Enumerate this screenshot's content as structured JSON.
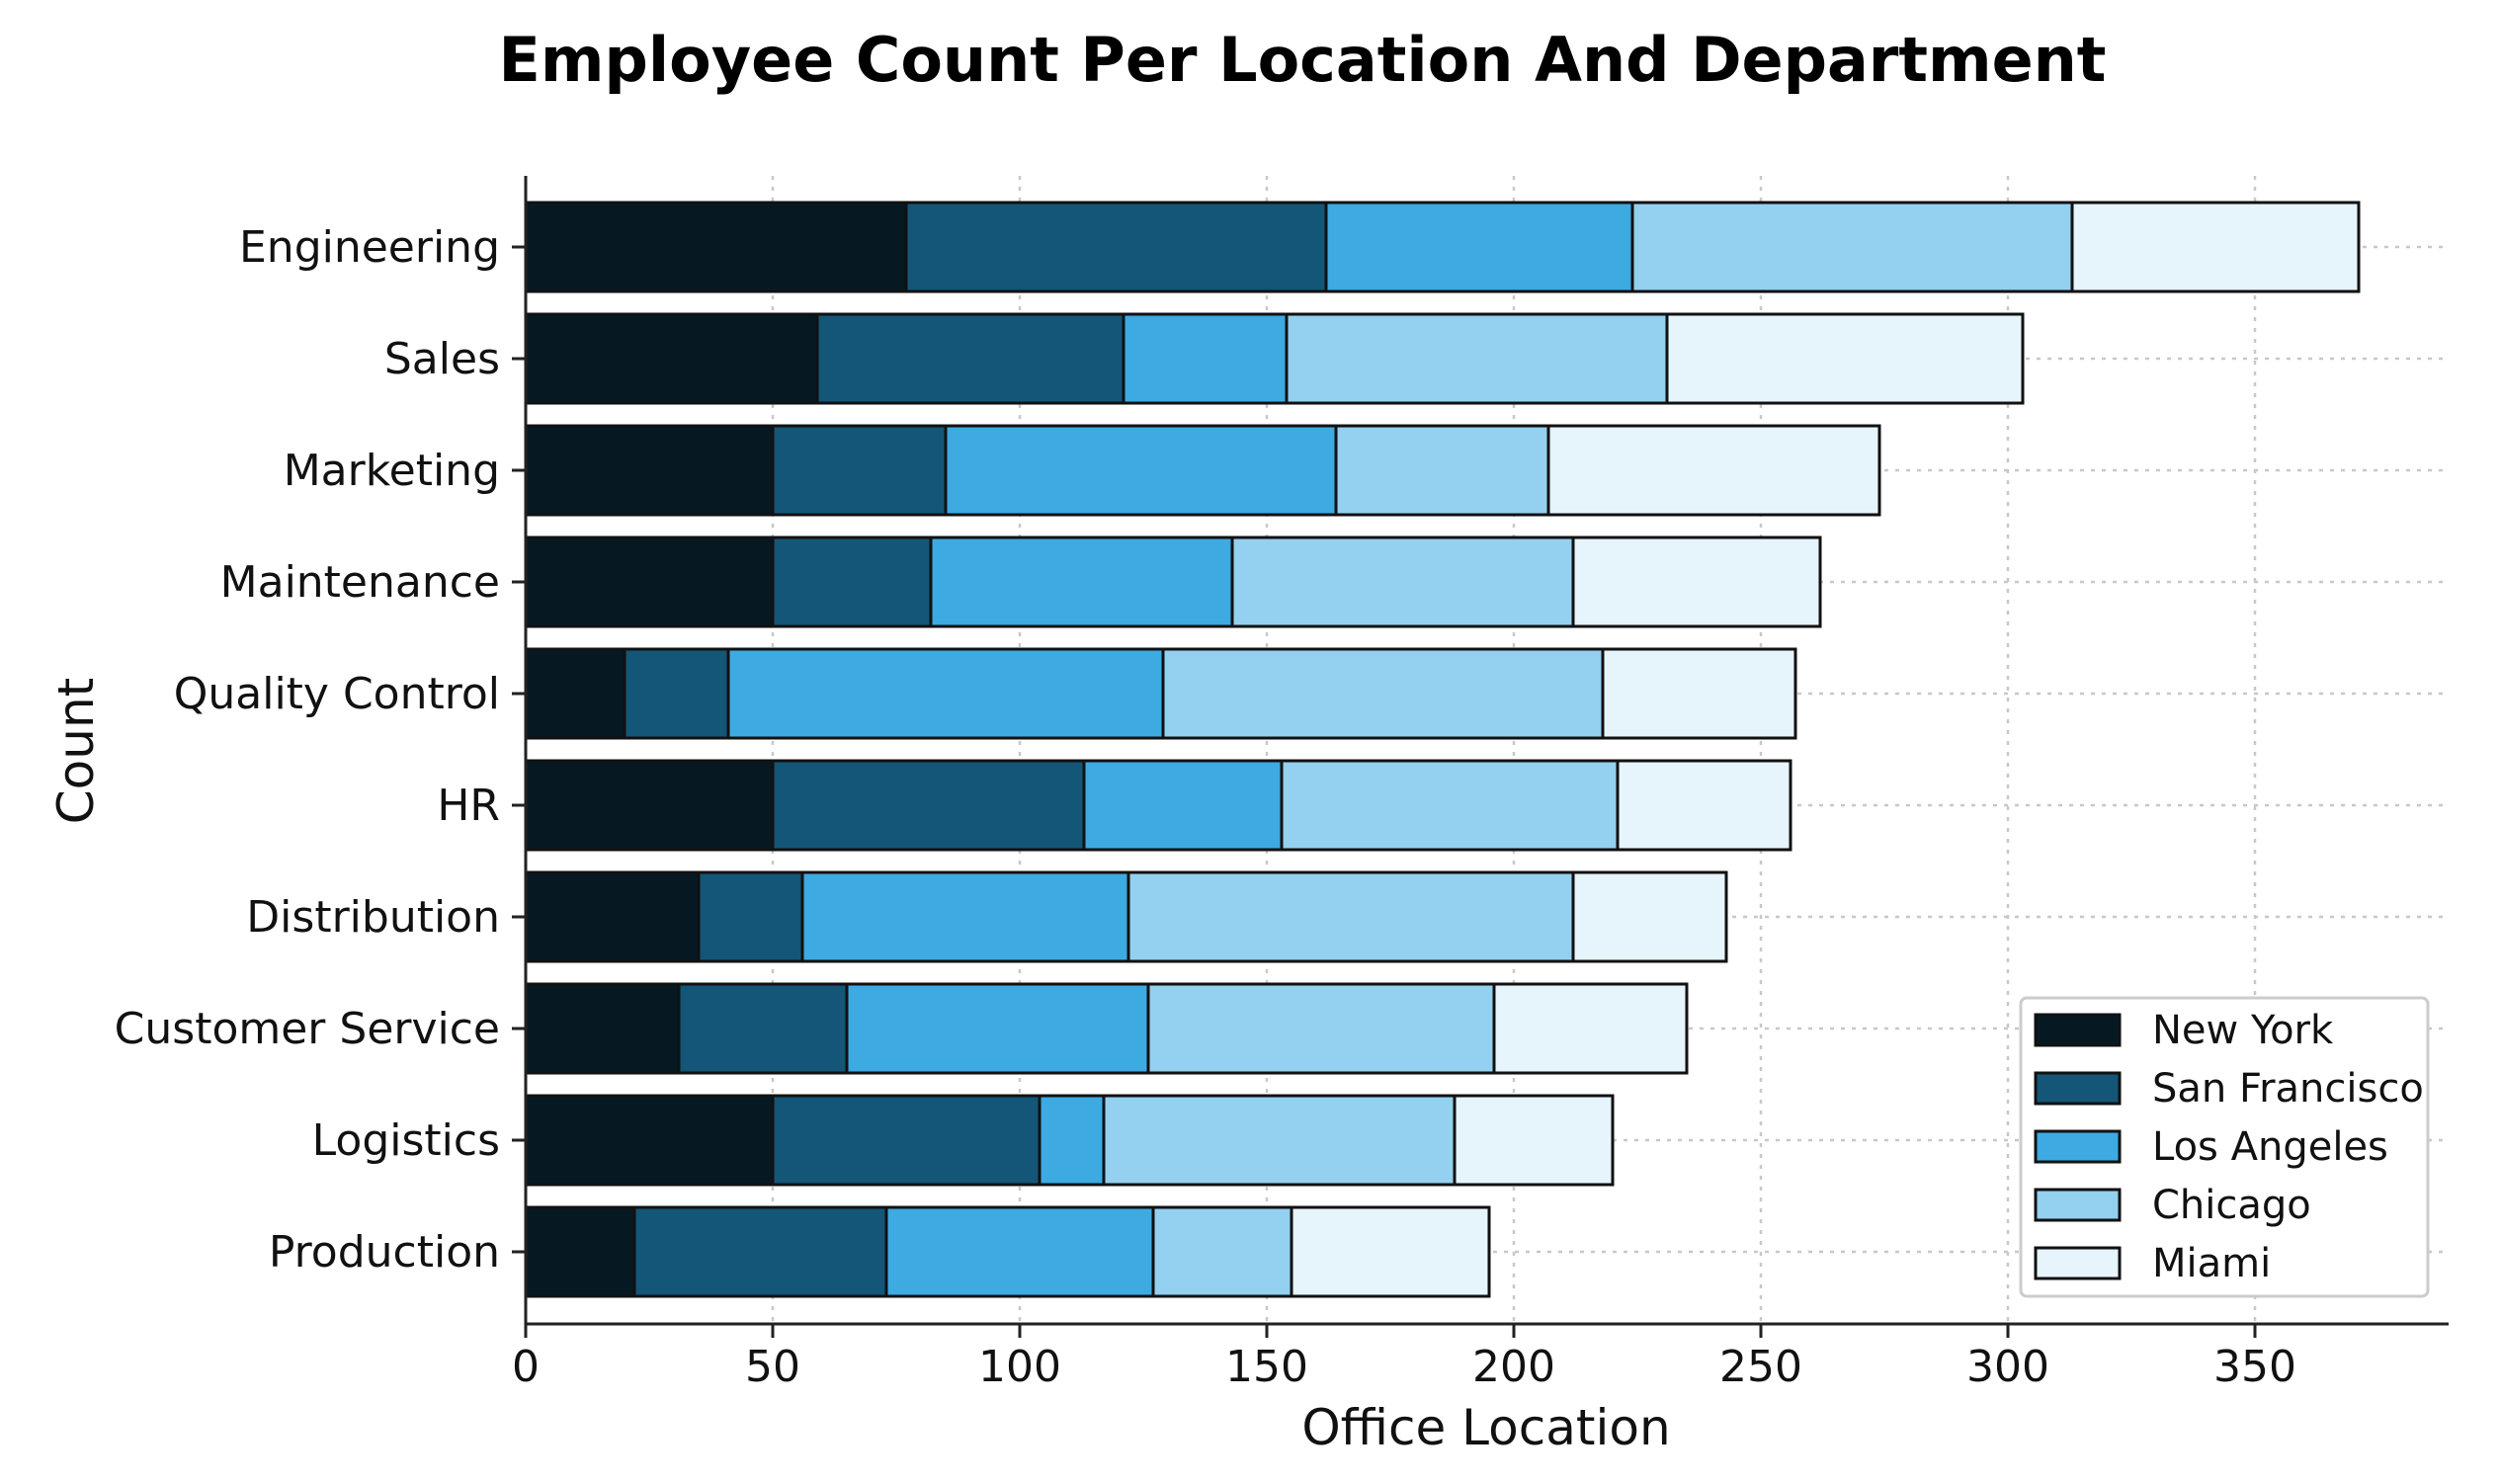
{
  "chart_data": {
    "type": "bar",
    "orientation": "horizontal",
    "stacked": true,
    "title": "Employee Count Per Location And Department",
    "xlabel": "Office Location",
    "ylabel": "Count",
    "xlim": [
      0,
      390
    ],
    "xticks": [
      0,
      50,
      100,
      150,
      200,
      250,
      300,
      350
    ],
    "grid": true,
    "legend_position": "lower right",
    "categories": [
      "Engineering",
      "Sales",
      "Marketing",
      "Maintenance",
      "Quality Control",
      "HR",
      "Distribution",
      "Customer Service",
      "Logistics",
      "Production"
    ],
    "series": [
      {
        "name": "New York",
        "color": "#061923",
        "values": [
          77,
          59,
          50,
          50,
          20,
          50,
          35,
          31,
          50,
          22
        ]
      },
      {
        "name": "San Francisco",
        "color": "#135678",
        "values": [
          85,
          62,
          35,
          32,
          21,
          63,
          21,
          34,
          54,
          51
        ]
      },
      {
        "name": "Los Angeles",
        "color": "#3daae2",
        "values": [
          62,
          33,
          79,
          61,
          88,
          40,
          66,
          61,
          13,
          54
        ]
      },
      {
        "name": "Chicago",
        "color": "#94d0ef",
        "values": [
          89,
          77,
          43,
          69,
          89,
          68,
          90,
          70,
          71,
          28
        ]
      },
      {
        "name": "Miami",
        "color": "#e6f4fc",
        "values": [
          58,
          72,
          67,
          50,
          39,
          35,
          31,
          39,
          32,
          40
        ]
      }
    ]
  }
}
